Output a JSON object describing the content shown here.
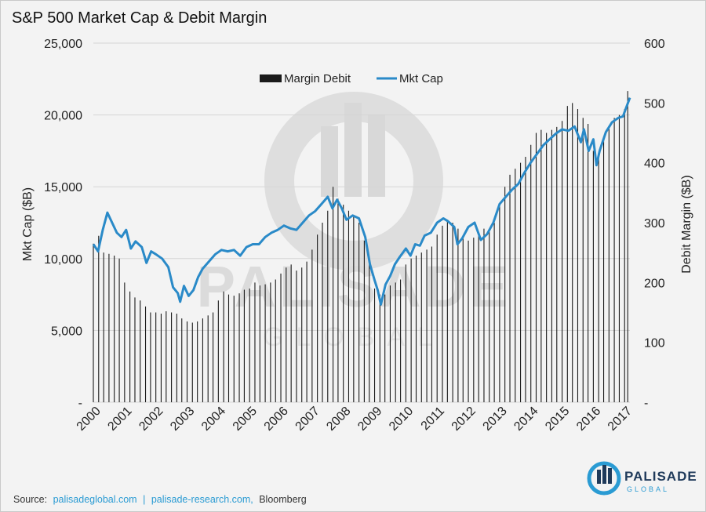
{
  "chart_data": {
    "type": "bar+line",
    "title": "S&P 500 Market Cap & Debit Margin",
    "ylabel_left": "Mkt Cap ($B)",
    "ylabel_right": "Debit Margin ($B)",
    "ylim_left": [
      0,
      25000
    ],
    "ylim_right": [
      0,
      600
    ],
    "yticks_left": [
      "-",
      "5,000",
      "10,000",
      "15,000",
      "20,000",
      "25,000"
    ],
    "yticks_right": [
      "-",
      "100",
      "200",
      "300",
      "400",
      "500",
      "600"
    ],
    "x_ticks": [
      "2000",
      "2001",
      "2002",
      "2003",
      "2004",
      "2005",
      "2006",
      "2007",
      "2008",
      "2009",
      "2010",
      "2011",
      "2012",
      "2013",
      "2014",
      "2015",
      "2016",
      "2017"
    ],
    "x_range": [
      2000.0,
      2017.17
    ],
    "grid": true,
    "legend": {
      "position": "top-center",
      "entries": [
        "Margin Debit",
        "Mkt Cap"
      ]
    },
    "series": [
      {
        "name": "Margin Debit",
        "axis": "right",
        "type": "bar",
        "color": "#1a1a1a",
        "x": [
          2000.0,
          2000.17,
          2000.33,
          2000.5,
          2000.67,
          2000.83,
          2001.0,
          2001.17,
          2001.33,
          2001.5,
          2001.67,
          2001.83,
          2002.0,
          2002.17,
          2002.33,
          2002.5,
          2002.67,
          2002.83,
          2003.0,
          2003.17,
          2003.33,
          2003.5,
          2003.67,
          2003.83,
          2004.0,
          2004.17,
          2004.33,
          2004.5,
          2004.67,
          2004.83,
          2005.0,
          2005.17,
          2005.33,
          2005.5,
          2005.67,
          2005.83,
          2006.0,
          2006.17,
          2006.33,
          2006.5,
          2006.67,
          2006.83,
          2007.0,
          2007.17,
          2007.33,
          2007.5,
          2007.67,
          2007.83,
          2008.0,
          2008.17,
          2008.33,
          2008.5,
          2008.67,
          2008.83,
          2009.0,
          2009.17,
          2009.33,
          2009.5,
          2009.67,
          2009.83,
          2010.0,
          2010.17,
          2010.33,
          2010.5,
          2010.67,
          2010.83,
          2011.0,
          2011.17,
          2011.33,
          2011.5,
          2011.67,
          2011.83,
          2012.0,
          2012.17,
          2012.33,
          2012.5,
          2012.67,
          2012.83,
          2013.0,
          2013.17,
          2013.33,
          2013.5,
          2013.67,
          2013.83,
          2014.0,
          2014.17,
          2014.33,
          2014.5,
          2014.67,
          2014.83,
          2015.0,
          2015.17,
          2015.33,
          2015.5,
          2015.67,
          2015.83,
          2016.0,
          2016.17,
          2016.33,
          2016.5,
          2016.67,
          2016.83,
          2017.0,
          2017.1
        ],
        "values": [
          265,
          278,
          250,
          248,
          245,
          240,
          200,
          185,
          175,
          170,
          160,
          150,
          150,
          148,
          152,
          150,
          148,
          140,
          135,
          133,
          135,
          140,
          145,
          150,
          170,
          185,
          180,
          178,
          182,
          188,
          190,
          200,
          195,
          197,
          200,
          205,
          215,
          225,
          230,
          220,
          225,
          235,
          255,
          280,
          300,
          320,
          360,
          340,
          330,
          320,
          310,
          300,
          270,
          230,
          190,
          180,
          180,
          195,
          200,
          205,
          230,
          240,
          245,
          250,
          255,
          260,
          280,
          295,
          305,
          300,
          290,
          275,
          270,
          275,
          280,
          290,
          285,
          300,
          330,
          360,
          380,
          390,
          400,
          410,
          430,
          450,
          455,
          450,
          455,
          460,
          470,
          495,
          500,
          490,
          475,
          465,
          420,
          410,
          440,
          460,
          475,
          480,
          490,
          520
        ]
      },
      {
        "name": "Mkt Cap",
        "axis": "left",
        "type": "line",
        "color": "#2a8ac8",
        "x": [
          2000.0,
          2000.15,
          2000.3,
          2000.45,
          2000.6,
          2000.75,
          2000.9,
          2001.05,
          2001.2,
          2001.35,
          2001.55,
          2001.7,
          2001.85,
          2002.0,
          2002.2,
          2002.4,
          2002.55,
          2002.7,
          2002.78,
          2002.9,
          2003.05,
          2003.2,
          2003.35,
          2003.5,
          2003.7,
          2003.9,
          2004.1,
          2004.3,
          2004.5,
          2004.7,
          2004.9,
          2005.1,
          2005.3,
          2005.5,
          2005.7,
          2005.9,
          2006.1,
          2006.3,
          2006.5,
          2006.7,
          2006.9,
          2007.1,
          2007.3,
          2007.5,
          2007.65,
          2007.8,
          2007.95,
          2008.1,
          2008.3,
          2008.5,
          2008.7,
          2008.85,
          2009.0,
          2009.1,
          2009.2,
          2009.35,
          2009.5,
          2009.65,
          2009.8,
          2010.0,
          2010.15,
          2010.3,
          2010.45,
          2010.6,
          2010.8,
          2011.0,
          2011.2,
          2011.35,
          2011.55,
          2011.65,
          2011.8,
          2012.0,
          2012.2,
          2012.4,
          2012.6,
          2012.8,
          2013.0,
          2013.2,
          2013.4,
          2013.6,
          2013.8,
          2014.0,
          2014.2,
          2014.4,
          2014.6,
          2014.8,
          2015.0,
          2015.2,
          2015.4,
          2015.6,
          2015.7,
          2015.85,
          2016.0,
          2016.1,
          2016.2,
          2016.4,
          2016.6,
          2016.8,
          2016.95,
          2017.05,
          2017.17
        ],
        "values": [
          11000,
          10500,
          12000,
          13200,
          12500,
          11800,
          11500,
          12000,
          10700,
          11200,
          10800,
          9700,
          10500,
          10300,
          10000,
          9400,
          8000,
          7600,
          7000,
          8100,
          7400,
          7800,
          8700,
          9300,
          9800,
          10300,
          10600,
          10500,
          10600,
          10200,
          10800,
          11000,
          11000,
          11500,
          11800,
          12000,
          12300,
          12100,
          12000,
          12500,
          13000,
          13300,
          13800,
          14300,
          13500,
          14100,
          13500,
          12700,
          13000,
          12800,
          11500,
          9600,
          8500,
          7800,
          6800,
          8200,
          8800,
          9600,
          10100,
          10700,
          10200,
          11000,
          10900,
          11600,
          11800,
          12500,
          12800,
          12600,
          12200,
          11000,
          11400,
          12200,
          12500,
          11300,
          11700,
          12500,
          13800,
          14300,
          14800,
          15200,
          16000,
          16700,
          17300,
          17900,
          18300,
          18700,
          19000,
          18900,
          19200,
          18100,
          19000,
          17500,
          18300,
          16500,
          17500,
          18800,
          19500,
          19800,
          19900,
          20500,
          21200
        ]
      }
    ],
    "source": {
      "label": "Source:",
      "link1": "palisadeglobal.com",
      "sep": "|",
      "link2": "palisade-research.com,",
      "extra": "Bloomberg"
    },
    "brand": {
      "name": "PALISADE",
      "sub": "GLOBAL"
    },
    "watermark": {
      "name": "PALISADE",
      "sub": "GLOBAL"
    }
  }
}
